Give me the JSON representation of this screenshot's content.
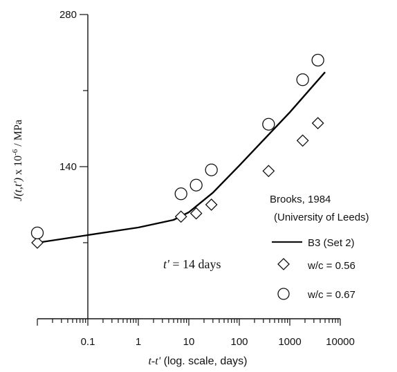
{
  "chart_data": {
    "type": "scatter",
    "x_scale": "log",
    "xlim": [
      0.01,
      10000
    ],
    "ylim": [
      0,
      280
    ],
    "x_ticks": [
      {
        "value": 0.1,
        "label": "0.1"
      },
      {
        "value": 1,
        "label": "1"
      },
      {
        "value": 10,
        "label": "10"
      },
      {
        "value": 100,
        "label": "100"
      },
      {
        "value": 1000,
        "label": "1000"
      },
      {
        "value": 10000,
        "label": "10000"
      }
    ],
    "y_ticks": [
      {
        "value": 140,
        "label": "140"
      },
      {
        "value": 280,
        "label": "280"
      }
    ],
    "xlabel": {
      "var": "t-t'",
      "rest": " (log. scale, days)"
    },
    "ylabel": {
      "var": "J(t,t')",
      "mid": " x 10",
      "sup": "-6",
      "rest": " / MPa"
    },
    "annotation": {
      "var": "t'",
      "rest": " = 14 days"
    },
    "legend_title": "Brooks, 1984",
    "legend_subtitle": "(University of Leeds)",
    "series": [
      {
        "name": "B3 (Set 2)",
        "kind": "line",
        "color": "#000000",
        "points": [
          [
            0.01,
            70
          ],
          [
            0.1,
            77
          ],
          [
            1,
            84
          ],
          [
            5,
            91
          ],
          [
            10,
            98
          ],
          [
            30,
            116
          ],
          [
            100,
            141
          ],
          [
            1000,
            190
          ],
          [
            5000,
            227
          ]
        ]
      },
      {
        "name": "w/c = 0.56",
        "kind": "marker",
        "marker": "diamond",
        "points": [
          [
            0.01,
            70
          ],
          [
            7,
            94
          ],
          [
            14,
            97
          ],
          [
            28,
            105
          ],
          [
            380,
            136
          ],
          [
            1800,
            164
          ],
          [
            3600,
            180
          ]
        ]
      },
      {
        "name": "w/c = 0.67",
        "kind": "marker",
        "marker": "circle",
        "points": [
          [
            0.01,
            79
          ],
          [
            7,
            115
          ],
          [
            14,
            123
          ],
          [
            28,
            137
          ],
          [
            380,
            179
          ],
          [
            1800,
            220
          ],
          [
            3600,
            238
          ]
        ]
      }
    ]
  }
}
